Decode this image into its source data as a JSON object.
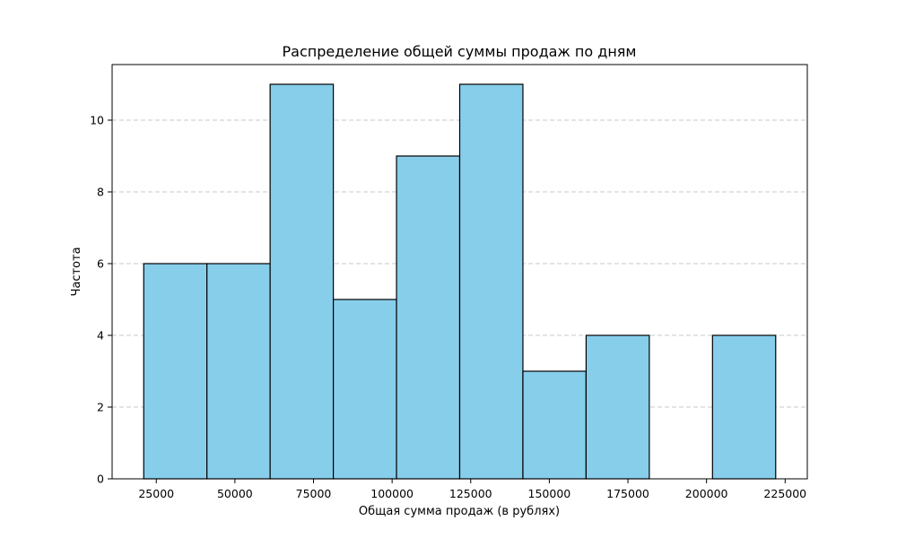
{
  "chart_data": {
    "type": "bar",
    "subtype": "histogram",
    "title": "Распределение общей суммы продаж по дням",
    "xlabel": "Общая сумма продаж (в рублях)",
    "ylabel": "Частота",
    "bins": [
      {
        "x0": 21000,
        "x1": 41100,
        "count": 6
      },
      {
        "x0": 41100,
        "x1": 61200,
        "count": 6
      },
      {
        "x0": 61200,
        "x1": 81300,
        "count": 11
      },
      {
        "x0": 81300,
        "x1": 101400,
        "count": 5
      },
      {
        "x0": 101400,
        "x1": 121500,
        "count": 9
      },
      {
        "x0": 121500,
        "x1": 141600,
        "count": 11
      },
      {
        "x0": 141600,
        "x1": 161700,
        "count": 3
      },
      {
        "x0": 161700,
        "x1": 181800,
        "count": 4
      },
      {
        "x0": 181800,
        "x1": 201900,
        "count": 0
      },
      {
        "x0": 201900,
        "x1": 222000,
        "count": 4
      }
    ],
    "xlim": [
      10950,
      232050
    ],
    "ylim": [
      0,
      11.55
    ],
    "xticks": [
      25000,
      50000,
      75000,
      100000,
      125000,
      150000,
      175000,
      200000,
      225000
    ],
    "yticks": [
      0,
      2,
      4,
      6,
      8,
      10
    ],
    "grid": "y",
    "bar_color": "#87CEEB",
    "edge_color": "#000000",
    "grid_color": "#c8c8c8"
  }
}
